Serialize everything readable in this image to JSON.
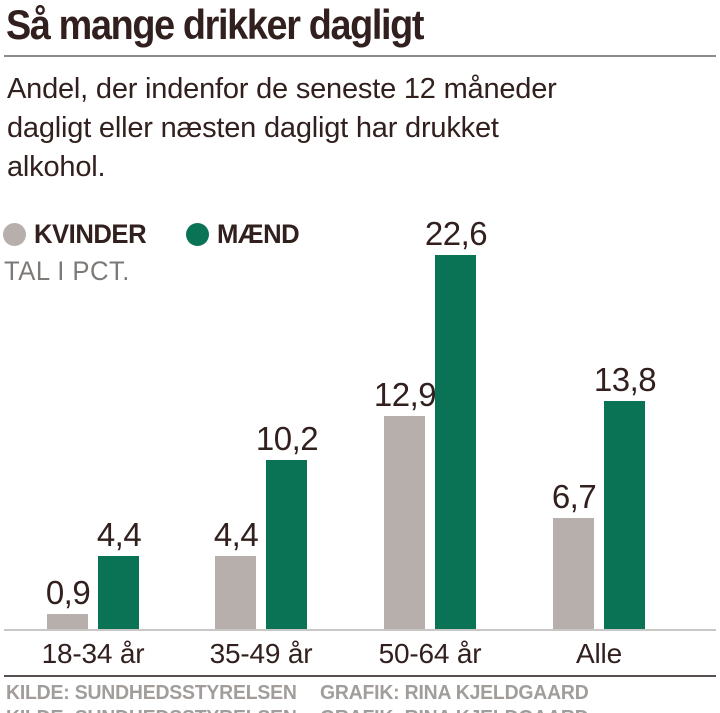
{
  "header": {
    "title": "Så mange drikker dagligt",
    "subtitle": "Andel, der indenfor de seneste 12 måneder dagligt eller næsten dagligt har drukket alkohol.",
    "subtitle_lines": [
      "Andel, der indenfor de seneste 12 måneder",
      "dagligt eller næsten dagligt har drukket",
      "alkohol."
    ]
  },
  "legend": {
    "items": [
      {
        "label": "KVINDER",
        "color": "#b6afac"
      },
      {
        "label": "MÆND",
        "color": "#0a7356"
      }
    ],
    "unit_note": "TAL I PCT."
  },
  "chart_data": {
    "type": "bar",
    "title": "Så mange drikker dagligt",
    "categories": [
      "18-34 år",
      "35-49 år",
      "50-64 år",
      "Alle"
    ],
    "series": [
      {
        "name": "KVINDER",
        "color": "#b6afac",
        "values": [
          0.9,
          4.4,
          12.9,
          6.7
        ],
        "labels": [
          "0,9",
          "4,4",
          "12,9",
          "6,7"
        ]
      },
      {
        "name": "MÆND",
        "color": "#0a7356",
        "values": [
          4.4,
          10.2,
          22.6,
          13.8
        ],
        "labels": [
          "4,4",
          "10,2",
          "22,6",
          "13,8"
        ]
      }
    ],
    "unit": "TAL I PCT.",
    "ylim": [
      0,
      24
    ],
    "grid": false,
    "value_labels_shown": true,
    "legend_position": "top-left"
  },
  "footer": {
    "source_label": "KILDE: SUNDHEDSSTYRELSEN",
    "credit_label": "GRAFIK: RINA KJELDGAARD"
  },
  "colors": {
    "text_dark": "#32201f",
    "text_gray": "#7d7977",
    "footer_gray": "#a19d9b",
    "bar_women": "#b6afac",
    "bar_men": "#0a7356",
    "axis_line": "#c9c7c5",
    "title_rule": "#8d8b8a",
    "footer_rule": "#56514e"
  }
}
